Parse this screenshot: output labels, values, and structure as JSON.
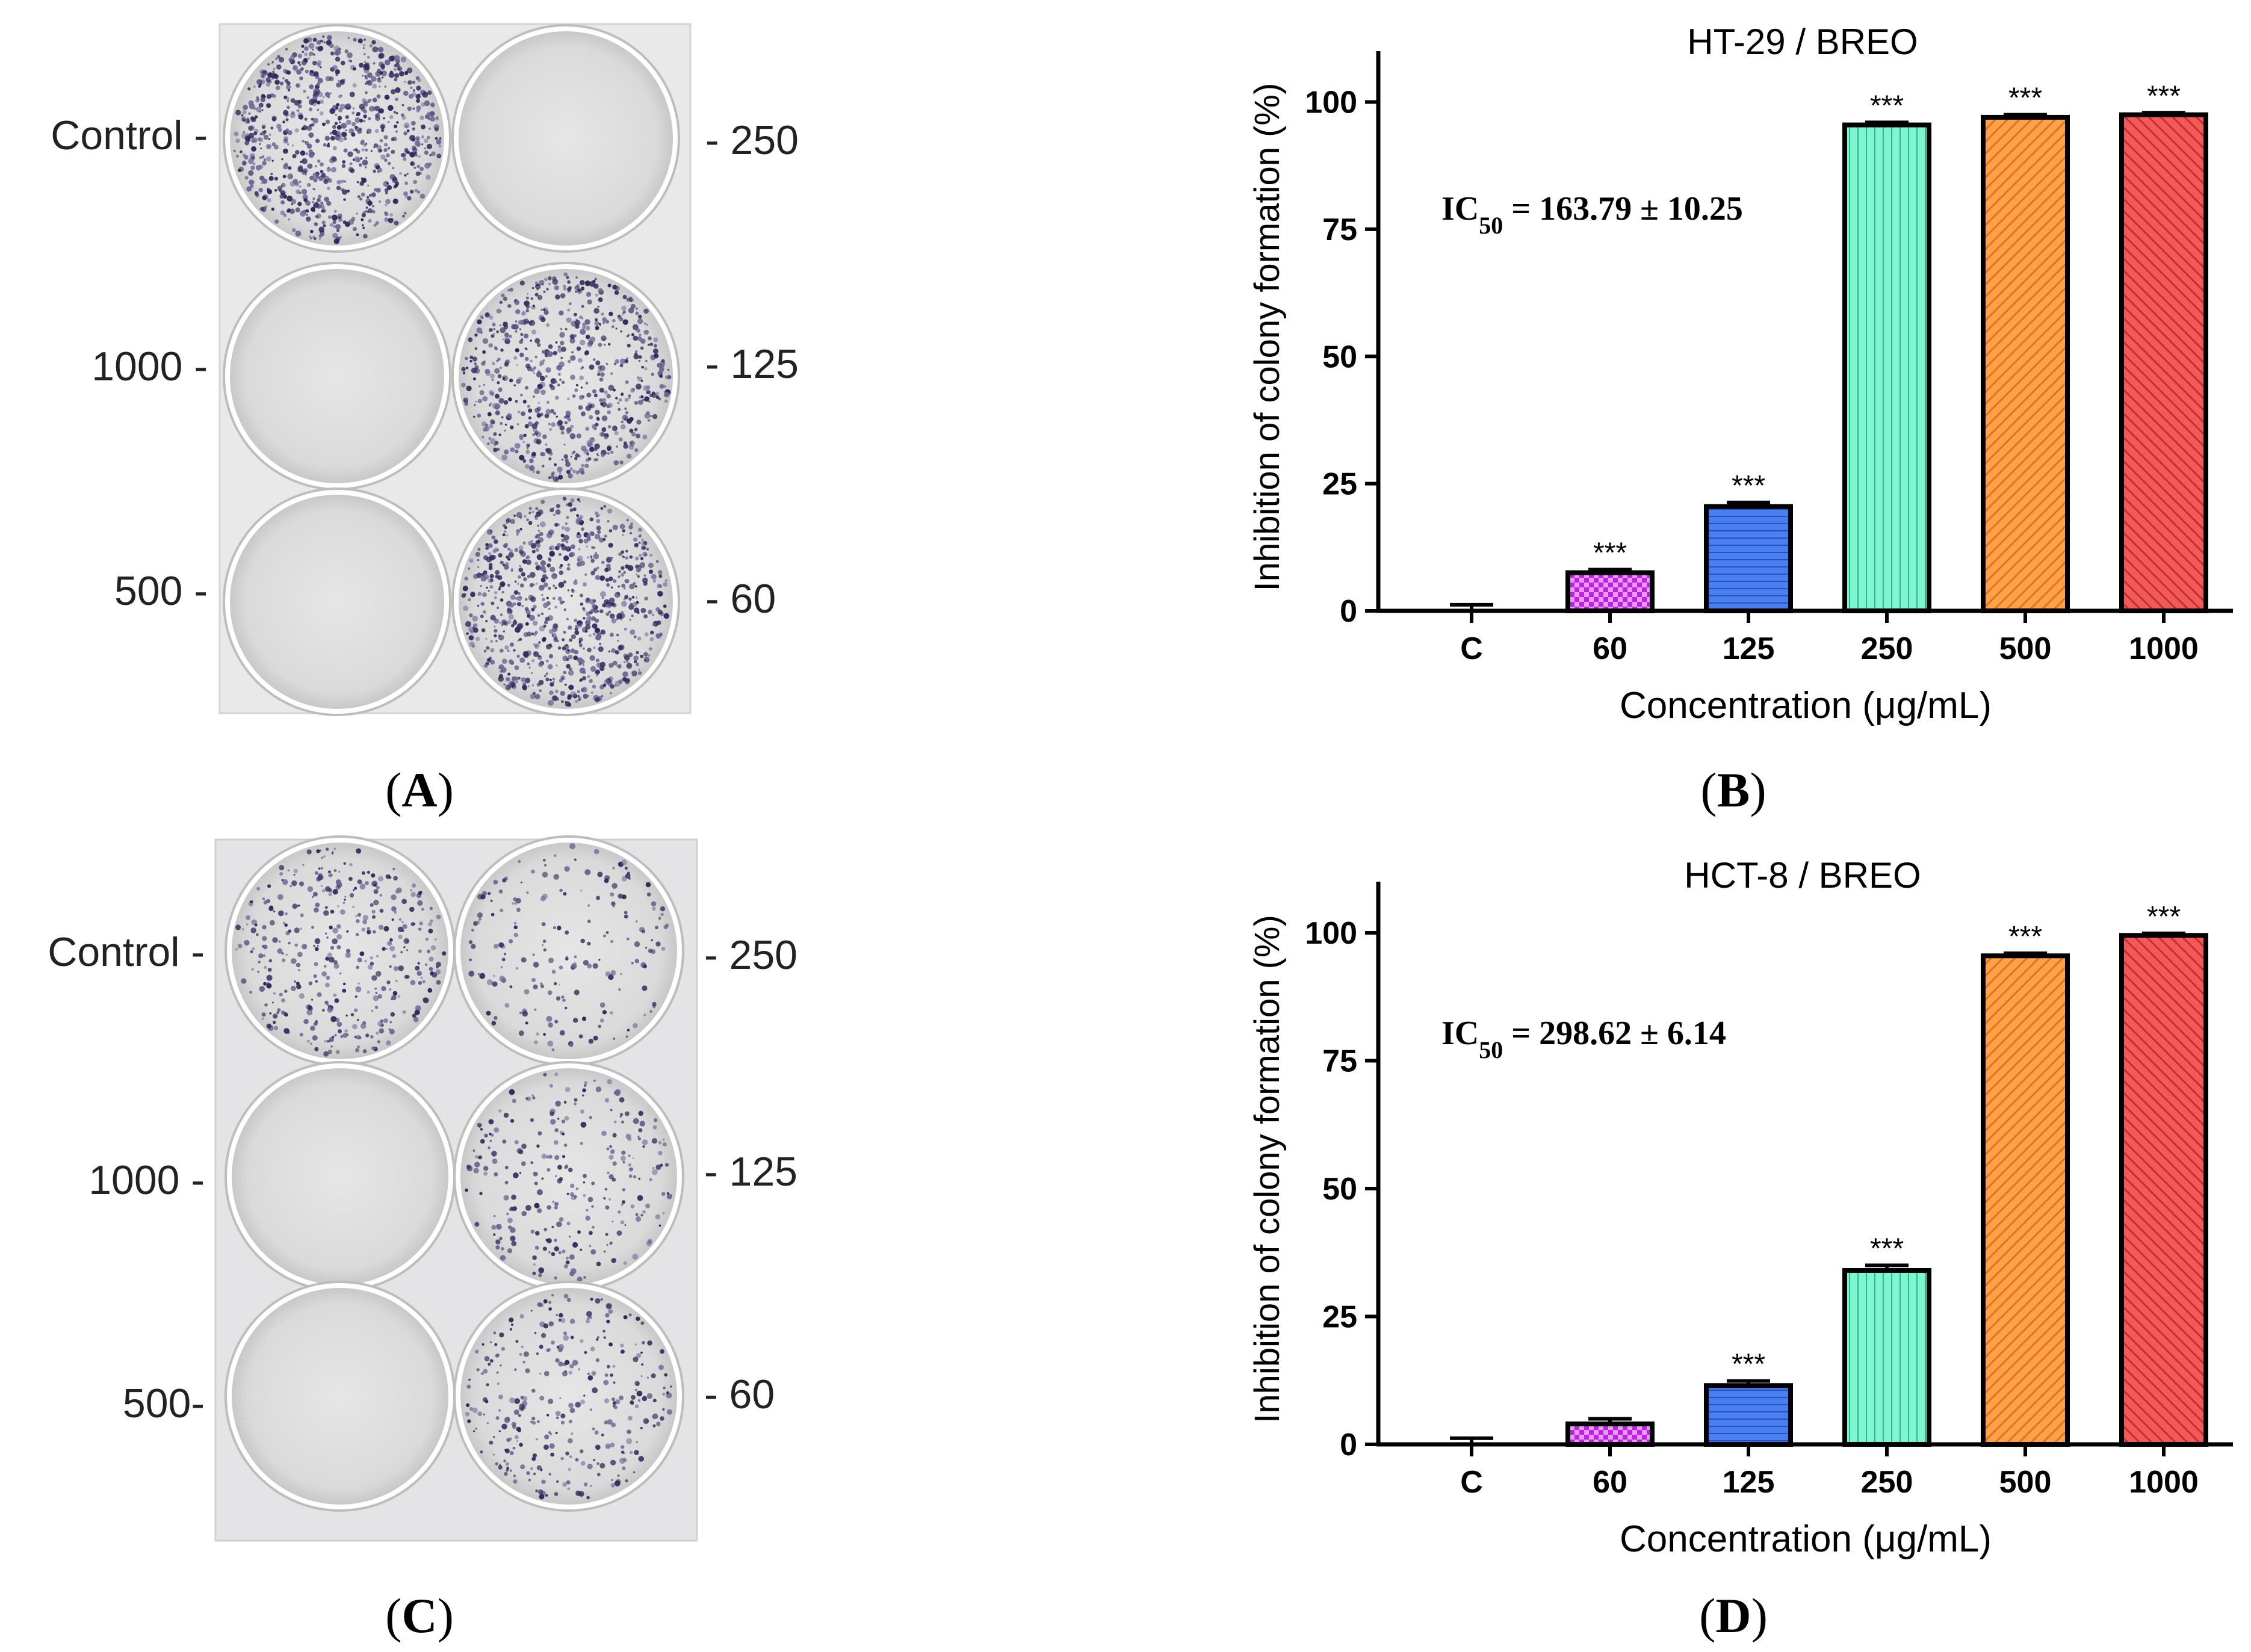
{
  "panels": {
    "A": {
      "caption_open": "(",
      "caption_letter": "A",
      "caption_close": ")"
    },
    "B": {
      "caption_open": "(",
      "caption_letter": "B",
      "caption_close": ")"
    },
    "C": {
      "caption_open": "(",
      "caption_letter": "C",
      "caption_close": ")"
    },
    "D": {
      "caption_open": "(",
      "caption_letter": "D",
      "caption_close": ")"
    }
  },
  "plates": [
    {
      "id": "A",
      "left_labels": [
        "Control -",
        "1000 -",
        "500 -"
      ],
      "right_labels": [
        "- 250",
        "- 125",
        "- 60"
      ],
      "wells": [
        {
          "label": "Control",
          "stain": 0.95
        },
        {
          "label": "250",
          "stain": 0.0
        },
        {
          "label": "1000",
          "stain": 0.0
        },
        {
          "label": "125",
          "stain": 0.75
        },
        {
          "label": "500",
          "stain": 0.0
        },
        {
          "label": "60",
          "stain": 0.9
        }
      ]
    },
    {
      "id": "C",
      "left_labels": [
        "Control -",
        "1000 -",
        "500-"
      ],
      "right_labels": [
        "- 250",
        "- 125",
        "- 60"
      ],
      "wells": [
        {
          "label": "Control",
          "stain": 0.45
        },
        {
          "label": "250",
          "stain": 0.22
        },
        {
          "label": "1000",
          "stain": 0.0
        },
        {
          "label": "125",
          "stain": 0.3
        },
        {
          "label": "500",
          "stain": 0.0
        },
        {
          "label": "60",
          "stain": 0.35
        }
      ]
    }
  ],
  "colors": {
    "purple": "#c020e0",
    "blue": "#4a7ff0",
    "mint": "#7ff5d2",
    "orange": "#ffa04a",
    "red": "#f25a5a",
    "axis": "#000000"
  },
  "chart_data": [
    {
      "type": "bar",
      "title": "HT-29 / BREO",
      "xlabel": "Concentration (μg/mL)",
      "ylabel": "Inhibition of colony formation (%)",
      "ylim": [
        0,
        110
      ],
      "yticks": [
        0,
        25,
        50,
        75,
        100
      ],
      "categories": [
        "C",
        "60",
        "125",
        "250",
        "500",
        "1000"
      ],
      "values": [
        0,
        7.5,
        20.5,
        95.5,
        97,
        97.5
      ],
      "errors": [
        1.2,
        0.6,
        0.8,
        0.5,
        0.5,
        0.4
      ],
      "significance": [
        "",
        "***",
        "***",
        "***",
        "***",
        "***"
      ],
      "fills": [
        "none",
        "purple",
        "blue",
        "mint",
        "orange",
        "red"
      ],
      "ic50": {
        "label": "IC",
        "sub": "50",
        "value": " = 163.79 ± 10.25"
      }
    },
    {
      "type": "bar",
      "title": "HCT-8 / BREO",
      "xlabel": "Concentration (μg/mL)",
      "ylabel": "Inhibition of colony formation (%)",
      "ylim": [
        0,
        110
      ],
      "yticks": [
        0,
        25,
        50,
        75,
        100
      ],
      "categories": [
        "C",
        "60",
        "125",
        "250",
        "500",
        "1000"
      ],
      "values": [
        0,
        4,
        11.5,
        34,
        95.5,
        99.5
      ],
      "errors": [
        1.2,
        1.0,
        0.9,
        1.0,
        0.5,
        0.4
      ],
      "significance": [
        "",
        "",
        "***",
        "***",
        "***",
        "***"
      ],
      "fills": [
        "none",
        "purple",
        "blue",
        "mint",
        "orange",
        "red"
      ],
      "ic50": {
        "label": "IC",
        "sub": "50",
        "value": " = 298.62 ± 6.14"
      }
    }
  ]
}
